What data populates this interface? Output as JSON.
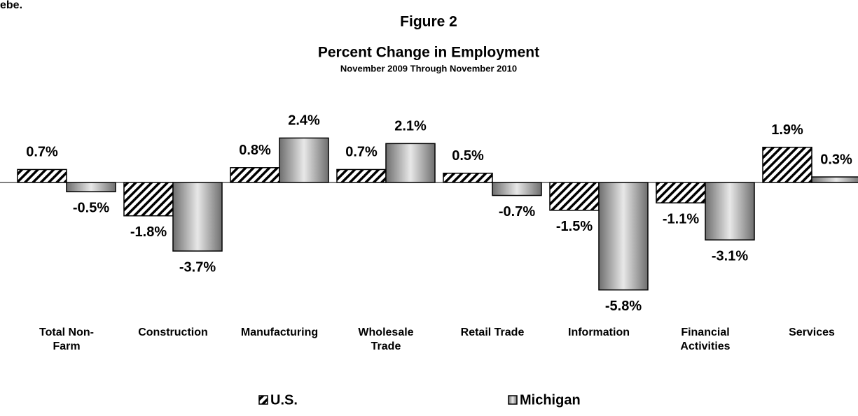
{
  "page_text": "ebe.",
  "chart_data": {
    "type": "bar",
    "figure_label": "Figure 2",
    "title": "Percent Change in Employment",
    "subtitle": "November 2009 Through November  2010",
    "categories": [
      "Total Non-\nFarm",
      "Construction",
      "Manufacturing",
      "Wholesale\nTrade",
      "Retail Trade",
      "Information",
      "Financial\nActivities",
      "Services"
    ],
    "series": [
      {
        "name": "U.S.",
        "color": "#ffffff",
        "pattern": "hatch",
        "values": [
          0.7,
          -1.8,
          0.8,
          0.7,
          0.5,
          -1.5,
          -1.1,
          1.9
        ],
        "value_labels": [
          "0.7%",
          "-1.8%",
          "0.8%",
          "0.7%",
          "0.5%",
          "-1.5%",
          "-1.1%",
          "1.9%"
        ]
      },
      {
        "name": "Michigan",
        "color": "#a6a6a6",
        "pattern": "gradient",
        "values": [
          -0.5,
          -3.7,
          2.4,
          2.1,
          -0.7,
          -5.8,
          -3.1,
          0.3
        ],
        "value_labels": [
          "-0.5%",
          "-3.7%",
          "2.4%",
          "2.1%",
          "-0.7%",
          "-5.8%",
          "-3.1%",
          "0.3%"
        ]
      }
    ],
    "ylim": [
      -7,
      3
    ],
    "legend": "bottom"
  }
}
